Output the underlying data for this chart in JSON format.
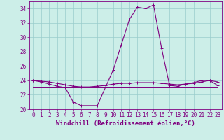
{
  "hours": [
    0,
    1,
    2,
    3,
    4,
    5,
    6,
    7,
    8,
    9,
    10,
    11,
    12,
    13,
    14,
    15,
    16,
    17,
    18,
    19,
    20,
    21,
    22,
    23
  ],
  "temp_line": [
    23.0,
    23.0,
    23.0,
    23.0,
    23.0,
    23.0,
    23.0,
    23.0,
    23.0,
    23.0,
    23.0,
    23.0,
    23.0,
    23.0,
    23.0,
    23.0,
    23.0,
    23.0,
    23.0,
    23.0,
    23.0,
    23.0,
    23.0,
    23.0
  ],
  "windchill_line": [
    24.0,
    23.8,
    23.5,
    23.2,
    23.0,
    21.0,
    20.5,
    20.5,
    20.5,
    23.0,
    25.5,
    29.0,
    32.5,
    34.2,
    34.0,
    34.5,
    28.5,
    23.3,
    23.2,
    23.5,
    23.7,
    24.0,
    24.0,
    23.3
  ],
  "ref_line": [
    24.0,
    23.9,
    23.8,
    23.6,
    23.4,
    23.2,
    23.1,
    23.1,
    23.2,
    23.3,
    23.5,
    23.6,
    23.6,
    23.7,
    23.7,
    23.7,
    23.6,
    23.5,
    23.4,
    23.5,
    23.6,
    23.8,
    24.0,
    23.8
  ],
  "color_main": "#800080",
  "background_color": "#cceee8",
  "grid_color": "#99cccc",
  "ylim": [
    20,
    35
  ],
  "yticks": [
    20,
    22,
    24,
    26,
    28,
    30,
    32,
    34
  ],
  "xlabel": "Windchill (Refroidissement éolien,°C)",
  "xlabel_fontsize": 6.5,
  "tick_fontsize": 5.5,
  "title": ""
}
